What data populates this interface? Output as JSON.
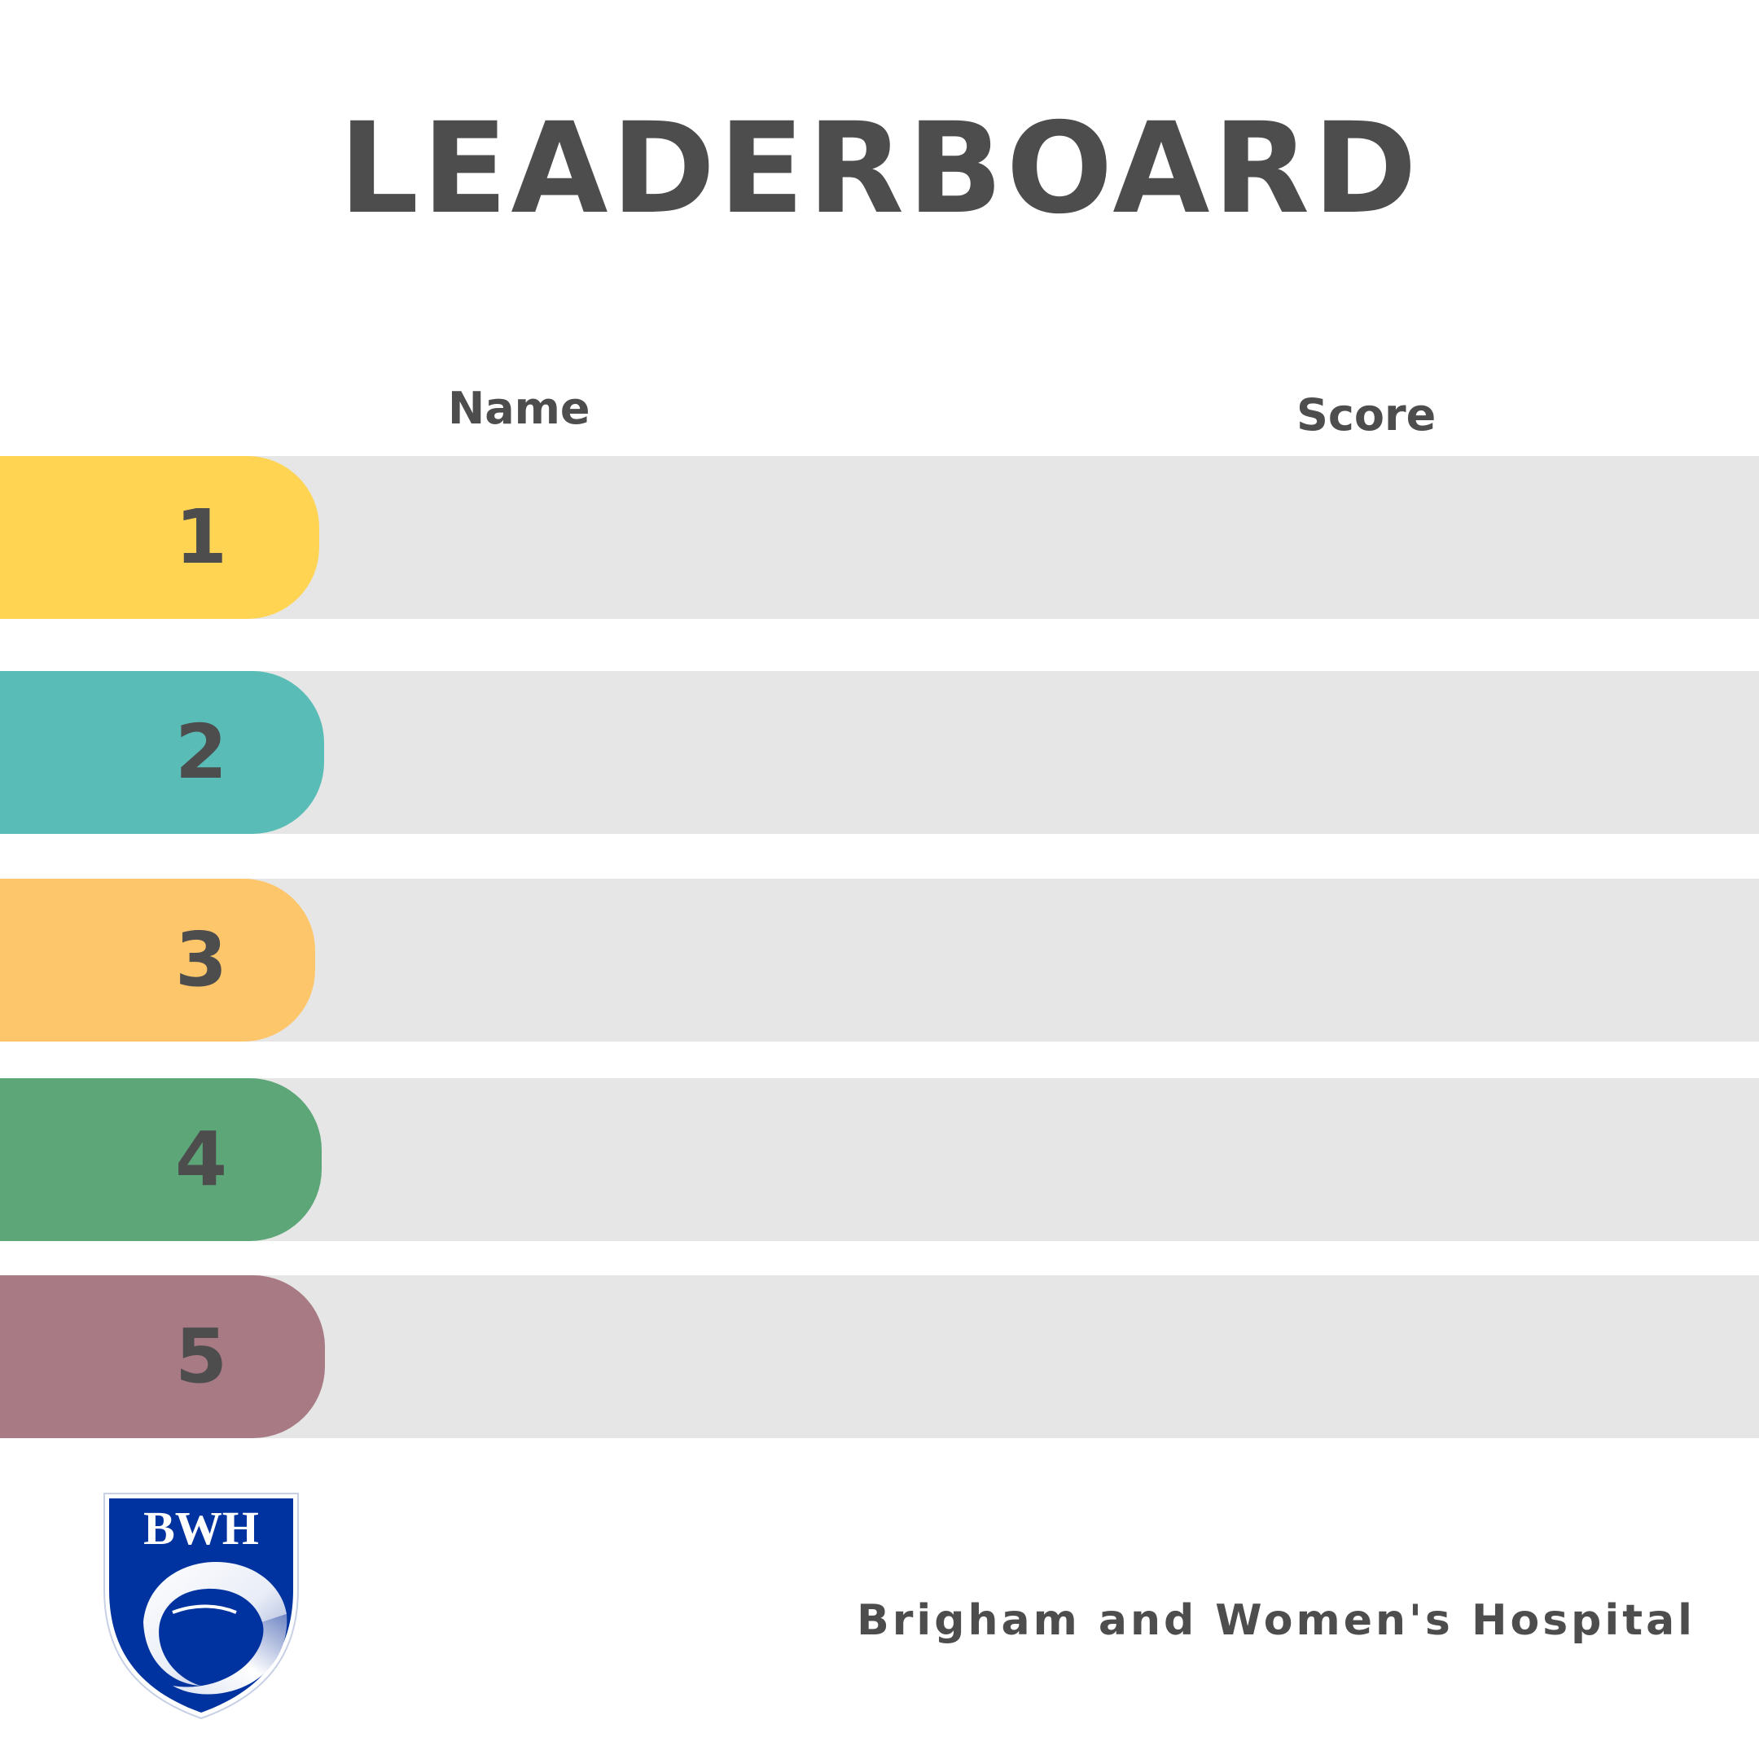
{
  "title": "LEADERBOARD",
  "columns": {
    "name": "Name",
    "score": "Score"
  },
  "rows": [
    {
      "rank": "1",
      "name": "",
      "score": "",
      "color": "#ffd452"
    },
    {
      "rank": "2",
      "name": "",
      "score": "",
      "color": "#5abcb6"
    },
    {
      "rank": "3",
      "name": "",
      "score": "",
      "color": "#fdc66b"
    },
    {
      "rank": "4",
      "name": "",
      "score": "",
      "color": "#5ca678"
    },
    {
      "rank": "5",
      "name": "",
      "score": "",
      "color": "#a87a84"
    }
  ],
  "logo": {
    "text": "BWH",
    "icon": "bwh-shield-logo",
    "color": "#0033a0"
  },
  "footer": {
    "hospital_name": "Brigham and Women's Hospital"
  }
}
